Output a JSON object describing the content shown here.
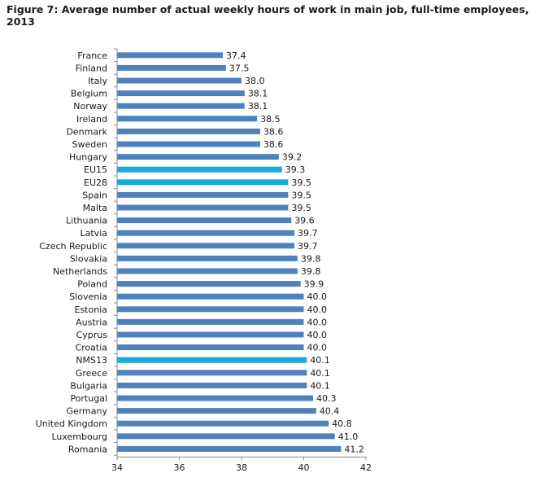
{
  "figure": {
    "title": "Figure 7: Average number of actual weekly hours of work in main job, full-time employees, 2013"
  },
  "colors": {
    "country_bar": "#4f81bd",
    "aggregate_bar": "#17a9d9",
    "axis": "#8c8c8c"
  },
  "chart_data": {
    "type": "bar",
    "orientation": "horizontal",
    "title": "Figure 7: Average number of actual weekly hours of work in main job, full-time employees, 2013",
    "xlabel": "",
    "ylabel": "",
    "xlim": [
      34,
      42
    ],
    "xticks": [
      34,
      36,
      38,
      40,
      42
    ],
    "grid": false,
    "legend": "none",
    "categories": [
      "France",
      "Finland",
      "Italy",
      "Belgium",
      "Norway",
      "Ireland",
      "Denmark",
      "Sweden",
      "Hungary",
      "EU15",
      "EU28",
      "Spain",
      "Malta",
      "Lithuania",
      "Latvia",
      "Czech Republic",
      "Slovakia",
      "Netherlands",
      "Poland",
      "Slovenia",
      "Estonia",
      "Austria",
      "Cyprus",
      "Croatia",
      "NMS13",
      "Greece",
      "Bulgaria",
      "Portugal",
      "Germany",
      "United Kingdom",
      "Luxembourg",
      "Romania"
    ],
    "values": [
      37.4,
      37.5,
      38.0,
      38.1,
      38.1,
      38.5,
      38.6,
      38.6,
      39.2,
      39.3,
      39.5,
      39.5,
      39.5,
      39.6,
      39.7,
      39.7,
      39.8,
      39.8,
      39.9,
      40.0,
      40.0,
      40.0,
      40.0,
      40.0,
      40.1,
      40.1,
      40.1,
      40.3,
      40.4,
      40.8,
      41.0,
      41.2
    ],
    "value_labels": [
      "37.4",
      "37.5",
      "38.0",
      "38.1",
      "38.1",
      "38.5",
      "38.6",
      "38.6",
      "39.2",
      "39.3",
      "39.5",
      "39.5",
      "39.5",
      "39.6",
      "39.7",
      "39.7",
      "39.8",
      "39.8",
      "39.9",
      "40.0",
      "40.0",
      "40.0",
      "40.0",
      "40.0",
      "40.1",
      "40.1",
      "40.1",
      "40.3",
      "40.4",
      "40.8",
      "41.0",
      "41.2"
    ],
    "highlighted": [
      "EU15",
      "EU28",
      "NMS13"
    ]
  }
}
